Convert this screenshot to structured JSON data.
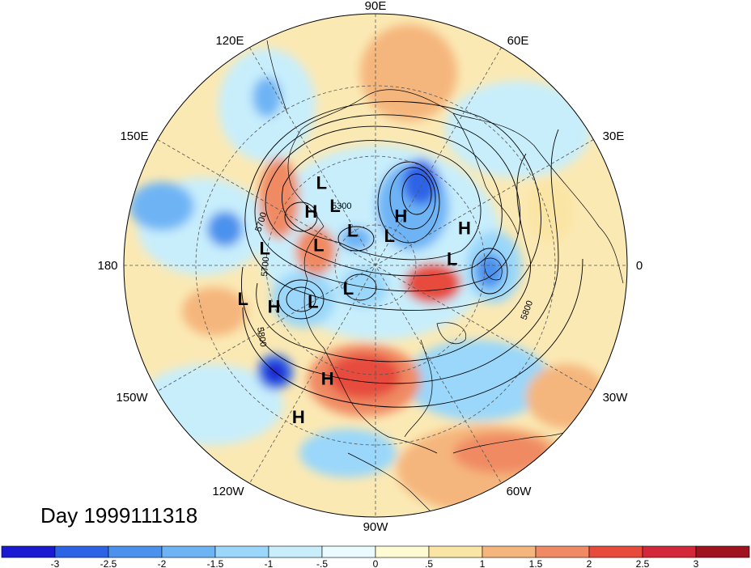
{
  "title": "Day 1999111318",
  "longitude_labels": [
    "90E",
    "60E",
    "30E",
    "0",
    "30W",
    "60W",
    "90W",
    "120W",
    "150W",
    "180",
    "150E",
    "120E"
  ],
  "pressure_centers": [
    {
      "type": "L",
      "lat": 47,
      "lon": 123
    },
    {
      "type": "L",
      "lat": 58,
      "lon": 124
    },
    {
      "type": "H",
      "lat": 53,
      "lon": 140
    },
    {
      "type": "L",
      "lat": 42,
      "lon": 171
    },
    {
      "type": "H",
      "lat": 43,
      "lon": -158
    },
    {
      "type": "L",
      "lat": 33,
      "lon": -166
    },
    {
      "type": "H",
      "lat": 38,
      "lon": -113
    },
    {
      "type": "H",
      "lat": 22,
      "lon": -117
    },
    {
      "type": "L",
      "lat": 63,
      "lon": 160
    },
    {
      "type": "L",
      "lat": 71,
      "lon": 123
    },
    {
      "type": "L",
      "lat": 75,
      "lon": 65
    },
    {
      "type": "H",
      "lat": 65,
      "lon": 63
    },
    {
      "type": "L",
      "lat": 58,
      "lon": -150
    },
    {
      "type": "L",
      "lat": 74,
      "lon": -140
    },
    {
      "type": "L",
      "lat": 56,
      "lon": 5
    },
    {
      "type": "H",
      "lat": 48,
      "lon": 23
    }
  ],
  "contour_labels": [
    "5300",
    "5700",
    "5700",
    "5800",
    "5800"
  ],
  "colorbar": {
    "ticks": [
      "-3",
      "-2.5",
      "-2",
      "-1.5",
      "-1",
      "-.5",
      "0",
      ".5",
      "1",
      "1.5",
      "2",
      "2.5",
      "3"
    ],
    "colors": [
      "#1a1ad2",
      "#2d64e6",
      "#4b91ee",
      "#6eb4f5",
      "#9ad7fa",
      "#c8eefc",
      "#ebfaff",
      "#fefad2",
      "#fbe5a5",
      "#f5b67d",
      "#f08a64",
      "#e64b3c",
      "#d2283a",
      "#a0121e"
    ]
  },
  "colors": {
    "contour": "#000000",
    "grid": "#555555",
    "coast": "#000000"
  }
}
